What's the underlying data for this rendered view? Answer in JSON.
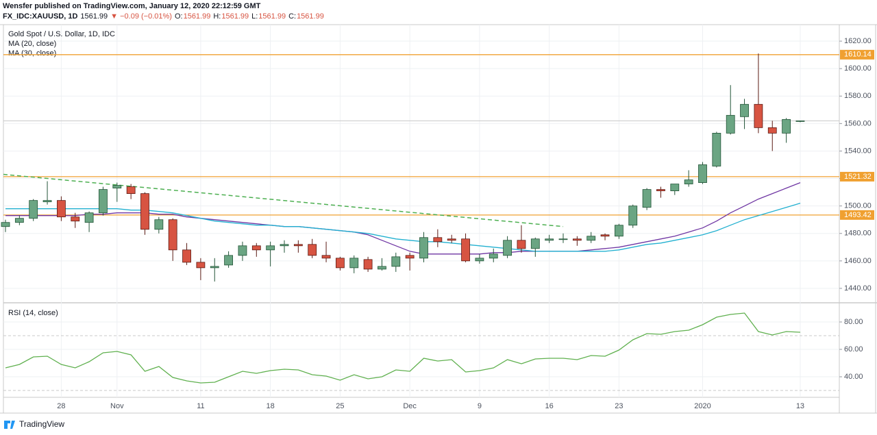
{
  "header": {
    "author_line": "Wensfer published on TradingView.com, January 12, 2020 22:12:59 GMT",
    "symbol": "FX_IDC:XAUUSD, 1D",
    "last": "1561.99",
    "change": "▼ −0.09 (−0.01%)",
    "ohlc": [
      {
        "label": "O:",
        "value": "1561.99"
      },
      {
        "label": "H:",
        "value": "1561.99"
      },
      {
        "label": "L:",
        "value": "1561.99"
      },
      {
        "label": "C:",
        "value": "1561.99"
      }
    ]
  },
  "footer": {
    "brand": "TradingView"
  },
  "chart_data": [
    {
      "type": "candlestick",
      "title": "Gold Spot / U.S. Dollar, 1D, IDC",
      "categories": [
        null,
        null,
        null,
        null,
        "28",
        null,
        null,
        null,
        "Nov",
        null,
        null,
        null,
        null,
        null,
        "11",
        null,
        null,
        null,
        null,
        "18",
        null,
        null,
        null,
        null,
        "25",
        null,
        null,
        null,
        null,
        "Dec",
        null,
        null,
        null,
        null,
        "9",
        null,
        null,
        null,
        null,
        "16",
        null,
        null,
        null,
        null,
        "23",
        null,
        null,
        null,
        null,
        null,
        "2020",
        null,
        null,
        null,
        null,
        null,
        null,
        "13"
      ],
      "open": [
        1485,
        1488,
        1491,
        1503,
        1504,
        1492,
        1488,
        1495,
        1513,
        1514,
        1509,
        1483,
        1490,
        1468,
        1459,
        1455,
        1457,
        1464,
        1471,
        1468,
        1471,
        1472,
        1472,
        1464,
        1462,
        1455,
        1461,
        1454,
        1456,
        1464,
        1462,
        1477,
        1476,
        1476,
        1460,
        1462,
        1464,
        1475,
        1469,
        1475,
        1476,
        1476,
        1475,
        1479,
        1478,
        1486,
        1499,
        1512,
        1511,
        1516,
        1517,
        1529,
        1553,
        1565,
        1574,
        1557,
        1553,
        1562
      ],
      "high": [
        1490,
        1493,
        1505,
        1518,
        1507,
        1495,
        1496,
        1514,
        1517,
        1516,
        1510,
        1492,
        1491,
        1473,
        1462,
        1462,
        1467,
        1474,
        1473,
        1474,
        1475,
        1475,
        1476,
        1474,
        1463,
        1464,
        1463,
        1462,
        1466,
        1466,
        1481,
        1483,
        1479,
        1480,
        1465,
        1469,
        1478,
        1486,
        1477,
        1479,
        1480,
        1478,
        1481,
        1480,
        1487,
        1501,
        1513,
        1514,
        1516,
        1526,
        1532,
        1554,
        1588,
        1578,
        1611,
        1562,
        1564,
        1562
      ],
      "low": [
        1481,
        1486,
        1489,
        1501,
        1489,
        1484,
        1481,
        1493,
        1503,
        1505,
        1479,
        1480,
        1460,
        1457,
        1446,
        1445,
        1455,
        1460,
        1463,
        1456,
        1466,
        1466,
        1462,
        1459,
        1453,
        1451,
        1452,
        1453,
        1452,
        1453,
        1459,
        1470,
        1473,
        1459,
        1458,
        1459,
        1462,
        1466,
        1463,
        1473,
        1473,
        1471,
        1473,
        1475,
        1476,
        1484,
        1497,
        1506,
        1508,
        1514,
        1516,
        1528,
        1552,
        1556,
        1553,
        1540,
        1546,
        1561
      ],
      "close": [
        1488,
        1491,
        1504,
        1504,
        1492,
        1489,
        1495,
        1512,
        1515,
        1509,
        1483,
        1490,
        1468,
        1459,
        1455,
        1456,
        1464,
        1471,
        1468,
        1471,
        1472,
        1471,
        1464,
        1462,
        1455,
        1462,
        1454,
        1456,
        1463,
        1462,
        1477,
        1474,
        1475,
        1460,
        1462,
        1465,
        1475,
        1469,
        1476,
        1476,
        1476,
        1475,
        1478,
        1478,
        1486,
        1500,
        1512,
        1511,
        1516,
        1519,
        1530,
        1553,
        1566,
        1574,
        1557,
        1553,
        1563,
        1562
      ],
      "up_color": "#6ba583",
      "down_color": "#d75442",
      "up_border": "#225437",
      "down_border": "#5b1a13",
      "series": [
        {
          "name": "MA (20, close)",
          "color": "#6f36a3",
          "values": [
            1493,
            1493,
            1493,
            1493,
            1493,
            1493,
            1494,
            1494,
            1495,
            1495,
            1495,
            1494,
            1494,
            1492,
            1491,
            1490,
            1489,
            1488,
            1487,
            1486,
            1485,
            1485,
            1484,
            1483,
            1482,
            1481,
            1479,
            1475,
            1471,
            1467,
            1465,
            1465,
            1465,
            1465,
            1465,
            1466,
            1466,
            1467,
            1467,
            1467,
            1467,
            1467,
            1468,
            1469,
            1470,
            1472,
            1474,
            1476,
            1478,
            1481,
            1484,
            1489,
            1495,
            1500,
            1505,
            1509,
            1513,
            1517
          ]
        },
        {
          "name": "MA (30, close)",
          "color": "#21b0d0",
          "values": [
            1498,
            1498,
            1498,
            1498,
            1498,
            1498,
            1498,
            1498,
            1498,
            1497,
            1497,
            1496,
            1495,
            1493,
            1491,
            1489,
            1488,
            1487,
            1486,
            1486,
            1485,
            1485,
            1484,
            1483,
            1482,
            1481,
            1480,
            1478,
            1476,
            1475,
            1474,
            1474,
            1473,
            1472,
            1471,
            1470,
            1469,
            1468,
            1467,
            1467,
            1467,
            1467,
            1467,
            1467,
            1468,
            1470,
            1472,
            1473,
            1475,
            1477,
            1479,
            1482,
            1486,
            1490,
            1493,
            1496,
            1499,
            1502
          ]
        }
      ],
      "levels": [
        {
          "value": 1610.14,
          "color": "#f0a030"
        },
        {
          "value": 1521.32,
          "color": "#f0a030"
        },
        {
          "value": 1493.42,
          "color": "#f0a030"
        }
      ],
      "trendline": {
        "x": [
          0,
          40
        ],
        "values": [
          1523,
          1485
        ],
        "color": "#4caf50"
      },
      "ylim": [
        1430,
        1632
      ],
      "yticks": [
        {
          "value": 1440,
          "label": "1440.00"
        },
        {
          "value": 1460,
          "label": "1460.00"
        },
        {
          "value": 1480,
          "label": "1480.00"
        },
        {
          "value": 1500,
          "label": "1500.00"
        },
        {
          "value": 1520,
          "label": "1520.00"
        },
        {
          "value": 1540,
          "label": "1540.00"
        },
        {
          "value": 1560,
          "label": "1560.00"
        },
        {
          "value": 1580,
          "label": "1580.00"
        },
        {
          "value": 1600,
          "label": "1600.00"
        },
        {
          "value": 1620,
          "label": "1620.00"
        }
      ]
    },
    {
      "type": "line",
      "title": "RSI (14, close)",
      "series": [
        {
          "name": "RSI (14, close)",
          "color": "#5fb04e",
          "values": [
            46.5,
            49,
            54.5,
            55,
            49,
            46.5,
            51,
            57.5,
            58.5,
            56,
            44,
            47.5,
            39.5,
            37,
            35.5,
            36,
            40,
            44,
            42.5,
            44.5,
            45.5,
            45,
            41.5,
            40.5,
            37.5,
            41.5,
            38.5,
            40,
            45,
            44,
            53.5,
            51.5,
            52.5,
            43.5,
            44.5,
            46.5,
            52.5,
            49.5,
            53,
            53.5,
            53.5,
            52.5,
            55.5,
            55,
            59.5,
            67,
            71.5,
            71,
            73,
            74,
            78,
            83.5,
            85.5,
            86.5,
            73,
            70.5,
            73,
            72.5
          ]
        }
      ],
      "levels": [
        70,
        30
      ],
      "ylim": [
        25,
        93.5
      ],
      "yticks": [
        {
          "value": 40,
          "label": "40.00"
        },
        {
          "value": 60,
          "label": "60.00"
        },
        {
          "value": 80,
          "label": "80.00"
        }
      ]
    }
  ]
}
